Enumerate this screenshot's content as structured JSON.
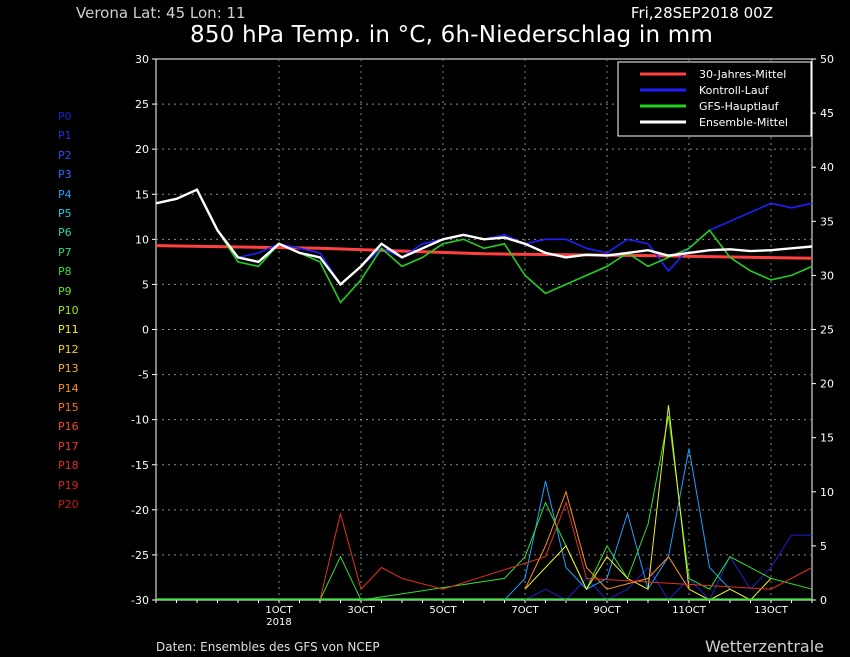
{
  "header": {
    "location": "Verona   Lat: 45  Lon: 11",
    "run": "Fri,28SEP2018 00Z",
    "title": "850 hPa Temp. in °C, 6h-Niederschlag in mm"
  },
  "footer": {
    "source": "Daten: Ensembles des GFS von NCEP",
    "brand": "Wetterzentrale"
  },
  "members": [
    {
      "label": "P0",
      "color": "#2020c8"
    },
    {
      "label": "P1",
      "color": "#2030e0"
    },
    {
      "label": "P2",
      "color": "#2050f0"
    },
    {
      "label": "P3",
      "color": "#2070ff"
    },
    {
      "label": "P4",
      "color": "#20a0ff"
    },
    {
      "label": "P5",
      "color": "#20c8e0"
    },
    {
      "label": "P6",
      "color": "#20d8a0"
    },
    {
      "label": "P7",
      "color": "#20e070"
    },
    {
      "label": "P8",
      "color": "#30e030"
    },
    {
      "label": "P9",
      "color": "#60e020"
    },
    {
      "label": "P10",
      "color": "#a0e820"
    },
    {
      "label": "P11",
      "color": "#f0f020"
    },
    {
      "label": "P12",
      "color": "#f8d020"
    },
    {
      "label": "P13",
      "color": "#f8b020"
    },
    {
      "label": "P14",
      "color": "#f89020"
    },
    {
      "label": "P15",
      "color": "#f87020"
    },
    {
      "label": "P16",
      "color": "#f05020"
    },
    {
      "label": "P17",
      "color": "#e84020"
    },
    {
      "label": "P18",
      "color": "#e03020"
    },
    {
      "label": "P19",
      "color": "#d82020"
    },
    {
      "label": "P20",
      "color": "#c81818"
    }
  ],
  "chart_data": {
    "type": "line",
    "ylim_temp": [
      -30,
      30
    ],
    "ylim_precip": [
      0,
      50
    ],
    "yticks_temp": [
      "30",
      "25",
      "20",
      "15",
      "10",
      "5",
      "0",
      "-5",
      "-10",
      "-15",
      "-20",
      "-25",
      "-30"
    ],
    "yticks_precip": [
      "50",
      "45",
      "40",
      "35",
      "30",
      "25",
      "20",
      "15",
      "10",
      "5",
      "0"
    ],
    "xlim_days": [
      0,
      16
    ],
    "xticks": [
      {
        "label": "1OCT",
        "sub": "2018",
        "day": 3.0
      },
      {
        "label": "3OCT",
        "sub": "",
        "day": 5.0
      },
      {
        "label": "5OCT",
        "sub": "",
        "day": 7.0
      },
      {
        "label": "7OCT",
        "sub": "",
        "day": 9.0
      },
      {
        "label": "9OCT",
        "sub": "",
        "day": 11.0
      },
      {
        "label": "11OCT",
        "sub": "",
        "day": 13.0
      },
      {
        "label": "13OCT",
        "sub": "",
        "day": 15.0
      }
    ],
    "legend_position": "top-right",
    "grid": true,
    "series": [
      {
        "name": "30-Jahres-Mittel",
        "color": "#ff4040",
        "x": [
          0,
          4,
          8,
          12,
          16
        ],
        "y": [
          9.3,
          9.0,
          8.4,
          8.2,
          7.9
        ]
      },
      {
        "name": "Kontroll-Lauf",
        "color": "#2020ff",
        "x": [
          0,
          0.5,
          1,
          1.5,
          2,
          2.5,
          3,
          3.5,
          4,
          4.5,
          5,
          5.5,
          6,
          6.5,
          7,
          7.5,
          8,
          8.5,
          9,
          9.5,
          10,
          10.5,
          11,
          11.5,
          12,
          12.5,
          13,
          13.5,
          14,
          14.5,
          15,
          15.5,
          16
        ],
        "y": [
          14,
          14.5,
          15.5,
          11,
          8,
          8.5,
          9.5,
          9,
          8.5,
          5,
          7,
          9,
          8,
          9.5,
          10,
          10.5,
          10,
          10.5,
          9.5,
          10,
          10,
          9,
          8.5,
          10,
          9.5,
          6.5,
          9,
          11,
          12,
          13,
          14,
          13.5,
          14
        ]
      },
      {
        "name": "GFS-Hauptlauf",
        "color": "#20d020",
        "x": [
          0,
          0.5,
          1,
          1.5,
          2,
          2.5,
          3,
          3.5,
          4,
          4.5,
          5,
          5.5,
          6,
          6.5,
          7,
          7.5,
          8,
          8.5,
          9,
          9.5,
          10,
          10.5,
          11,
          11.5,
          12,
          12.5,
          13,
          13.5,
          14,
          14.5,
          15,
          15.5,
          16
        ],
        "y": [
          14,
          14.5,
          15.5,
          11,
          7.5,
          7,
          9.5,
          8.5,
          7.5,
          3,
          5.5,
          9,
          7,
          8,
          9.5,
          10,
          9,
          9.5,
          6,
          4,
          5,
          6,
          7,
          8.5,
          7,
          8,
          9,
          11,
          8,
          6.5,
          5.5,
          6,
          7
        ]
      },
      {
        "name": "Ensemble-Mittel",
        "color": "#ffffff",
        "x": [
          0,
          0.5,
          1,
          1.5,
          2,
          2.5,
          3,
          3.5,
          4,
          4.5,
          5,
          5.5,
          6,
          6.5,
          7,
          7.5,
          8,
          8.5,
          9,
          9.5,
          10,
          10.5,
          11,
          11.5,
          12,
          12.5,
          13,
          13.5,
          14,
          14.5,
          15,
          15.5,
          16
        ],
        "y": [
          14,
          14.5,
          15.5,
          11,
          8,
          7.5,
          9.5,
          8.5,
          8,
          5,
          7,
          9.5,
          8,
          9,
          10,
          10.5,
          10,
          10.2,
          9.5,
          8.5,
          8,
          8.3,
          8.2,
          8.5,
          8.8,
          8.2,
          8.5,
          8.8,
          8.9,
          8.7,
          8.8,
          9.0,
          9.2
        ]
      }
    ],
    "precip_series": [
      {
        "name": "P0",
        "color": "#2020c8",
        "x": [
          9.0,
          9.5,
          10.0,
          10.5,
          11.0,
          11.5,
          12.0,
          12.5,
          13.0,
          13.5,
          14.0,
          14.5,
          15.0,
          15.5,
          16.0
        ],
        "y": [
          0,
          1,
          0,
          2,
          0,
          1,
          3,
          0,
          2,
          0,
          4,
          1,
          3,
          6,
          6
        ]
      },
      {
        "name": "P4",
        "color": "#20a0ff",
        "x": [
          8.5,
          9.0,
          9.5,
          10.0,
          10.5,
          11.0,
          11.5,
          12.0,
          12.5,
          13.0,
          13.5,
          14.0
        ],
        "y": [
          0,
          2,
          11,
          3,
          1,
          2,
          8,
          1,
          4,
          14,
          3,
          1
        ]
      },
      {
        "name": "P8",
        "color": "#30e030",
        "x": [
          4.0,
          4.5,
          5.0,
          8.5,
          9.0,
          9.5,
          10.0,
          10.5,
          11.0,
          11.5,
          12.0,
          12.5,
          13.0,
          13.5,
          14.0,
          15.0,
          16.0
        ],
        "y": [
          0,
          4,
          0,
          2,
          4,
          9,
          5,
          1,
          5,
          2,
          7,
          17,
          2,
          1,
          4,
          2,
          1
        ]
      },
      {
        "name": "P11",
        "color": "#f0f020",
        "x": [
          9.0,
          9.5,
          10.0,
          10.5,
          11.0,
          11.5,
          12.0,
          12.5,
          13.0,
          13.5,
          14.0,
          14.5,
          15.0
        ],
        "y": [
          1,
          3,
          5,
          1,
          4,
          2,
          1,
          18,
          1,
          0,
          1,
          0,
          2
        ]
      },
      {
        "name": "P14",
        "color": "#f89020",
        "x": [
          9.0,
          9.5,
          10.0,
          10.5,
          11.0,
          12.0,
          12.5,
          13.0
        ],
        "y": [
          1,
          5,
          10,
          3,
          1,
          2,
          4,
          1
        ]
      },
      {
        "name": "P18",
        "color": "#e03020",
        "x": [
          4.0,
          4.5,
          5.0,
          5.5,
          6.0,
          7.0,
          9.5,
          10.0,
          10.5,
          15.0,
          16.0
        ],
        "y": [
          0,
          8,
          1,
          3,
          2,
          1,
          4,
          9,
          2,
          1,
          3
        ]
      }
    ]
  }
}
